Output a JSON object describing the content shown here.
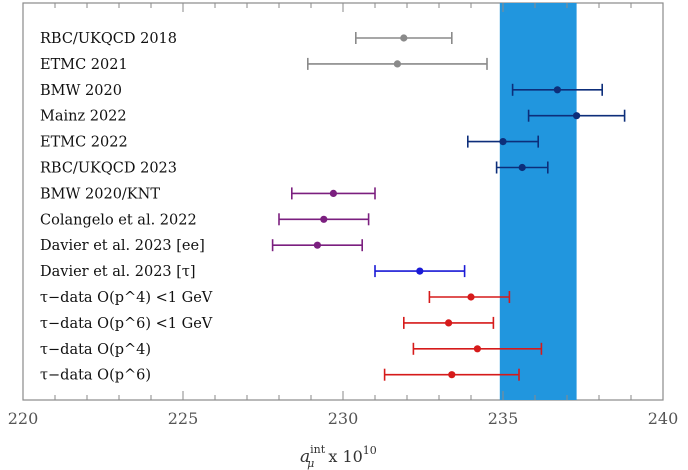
{
  "chart_data": {
    "type": "scatter",
    "orientation": "horizontal-error-bars",
    "xlim": [
      220,
      240
    ],
    "x_ticks": [
      220,
      225,
      230,
      235,
      240
    ],
    "xlabel": {
      "main": "a",
      "sup": "int",
      "sub": "μ",
      "factor": "x 10",
      "exponent": "10"
    },
    "band": {
      "xmin": 234.9,
      "xmax": 237.3,
      "color": "#2196de"
    },
    "grid": false,
    "rows": [
      {
        "label": "RBC/UKQCD 2018",
        "value": 231.9,
        "err_low": 230.4,
        "err_high": 233.4,
        "color": "#8a8a8a"
      },
      {
        "label": "ETMC 2021",
        "value": 231.7,
        "err_low": 228.9,
        "err_high": 234.5,
        "color": "#8a8a8a"
      },
      {
        "label": "BMW 2020",
        "value": 236.7,
        "err_low": 235.3,
        "err_high": 238.1,
        "color": "#0d2e7a"
      },
      {
        "label": "Mainz 2022",
        "value": 237.3,
        "err_low": 235.8,
        "err_high": 238.8,
        "color": "#0d2e7a"
      },
      {
        "label": "ETMC 2022",
        "value": 235.0,
        "err_low": 233.9,
        "err_high": 236.1,
        "color": "#0d2e7a"
      },
      {
        "label": "RBC/UKQCD 2023",
        "value": 235.6,
        "err_low": 234.8,
        "err_high": 236.4,
        "color": "#0d2e7a"
      },
      {
        "label": "BMW 2020/KNT",
        "value": 229.7,
        "err_low": 228.4,
        "err_high": 231.0,
        "color": "#7b1f7f"
      },
      {
        "label": "Colangelo et al. 2022",
        "value": 229.4,
        "err_low": 228.0,
        "err_high": 230.8,
        "color": "#7b1f7f"
      },
      {
        "label": "Davier et al. 2023 [ee]",
        "value": 229.2,
        "err_low": 227.8,
        "err_high": 230.6,
        "color": "#7b1f7f"
      },
      {
        "label": "Davier et al. 2023 [τ]",
        "value": 232.4,
        "err_low": 231.0,
        "err_high": 233.8,
        "color": "#1a1ad6"
      },
      {
        "label": "τ−data O(p^4) <1 GeV",
        "value": 234.0,
        "err_low": 232.7,
        "err_high": 235.2,
        "color": "#d61a1a"
      },
      {
        "label": "τ−data O(p^6) <1 GeV",
        "value": 233.3,
        "err_low": 231.9,
        "err_high": 234.7,
        "color": "#d61a1a"
      },
      {
        "label": "τ−data O(p^4)",
        "value": 234.2,
        "err_low": 232.2,
        "err_high": 236.2,
        "color": "#d61a1a"
      },
      {
        "label": "τ−data O(p^6)",
        "value": 233.4,
        "err_low": 231.3,
        "err_high": 235.5,
        "color": "#d61a1a"
      }
    ]
  }
}
